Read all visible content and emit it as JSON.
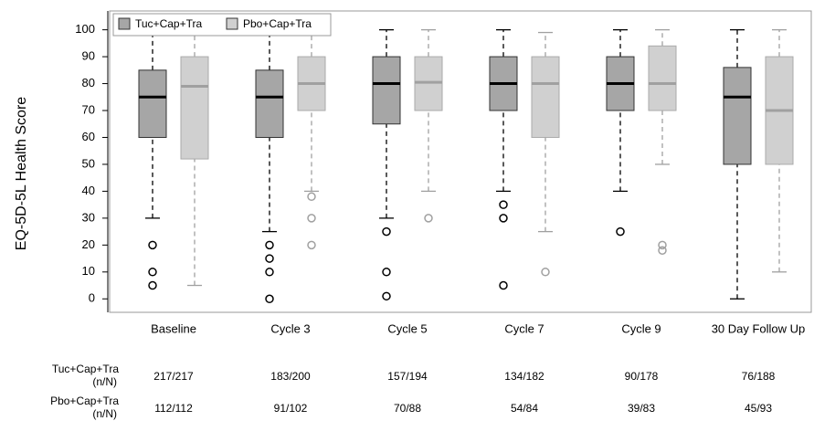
{
  "chart_data": {
    "type": "box",
    "y_label": "EQ-5D-5L Health Score",
    "categories": [
      "Baseline",
      "Cycle 3",
      "Cycle 5",
      "Cycle 7",
      "Cycle 9",
      "30 Day Follow Up"
    ],
    "ylim": [
      -5,
      107
    ],
    "yticks": [
      0,
      10,
      20,
      30,
      40,
      50,
      60,
      70,
      80,
      90,
      100
    ],
    "legend_position": "top-left",
    "series": [
      {
        "name": "Tuc+Cap+Tra",
        "color": "#a6a6a6",
        "line_color": "#000000",
        "whisker_low": [
          30,
          25,
          30,
          40,
          40,
          0
        ],
        "q1": [
          60,
          60,
          65,
          70,
          70,
          50
        ],
        "median": [
          75,
          75,
          80,
          80,
          80,
          75
        ],
        "q3": [
          85,
          85,
          90,
          90,
          90,
          86
        ],
        "whisker_high": [
          100,
          100,
          100,
          100,
          100,
          100
        ],
        "outliers": [
          [
            20,
            10,
            5
          ],
          [
            20,
            15,
            10,
            0
          ],
          [
            25,
            10,
            1
          ],
          [
            35,
            30,
            5
          ],
          [
            25
          ],
          []
        ]
      },
      {
        "name": "Pbo+Cap+Tra",
        "color": "#d0d0d0",
        "line_color": "#a0a0a0",
        "whisker_low": [
          5,
          40,
          40,
          25,
          50,
          10
        ],
        "q1": [
          52,
          70,
          70,
          60,
          70,
          50
        ],
        "median": [
          79,
          80,
          80.5,
          80,
          80,
          70
        ],
        "q3": [
          90,
          90,
          90,
          90,
          94,
          90
        ],
        "whisker_high": [
          100,
          100,
          100,
          99,
          100,
          100
        ],
        "outliers": [
          [],
          [
            38,
            30,
            20
          ],
          [
            30
          ],
          [
            10
          ],
          [
            20,
            18
          ],
          []
        ]
      }
    ],
    "counts_table": {
      "rows": [
        {
          "label": [
            "Tuc+Cap+Tra",
            "(n/N)"
          ],
          "values": [
            "217/217",
            "183/200",
            "157/194",
            "134/182",
            "90/178",
            "76/188"
          ]
        },
        {
          "label": [
            "Pbo+Cap+Tra",
            "(n/N)"
          ],
          "values": [
            "112/112",
            "91/102",
            "70/88",
            "54/84",
            "39/83",
            "45/93"
          ]
        }
      ]
    }
  }
}
